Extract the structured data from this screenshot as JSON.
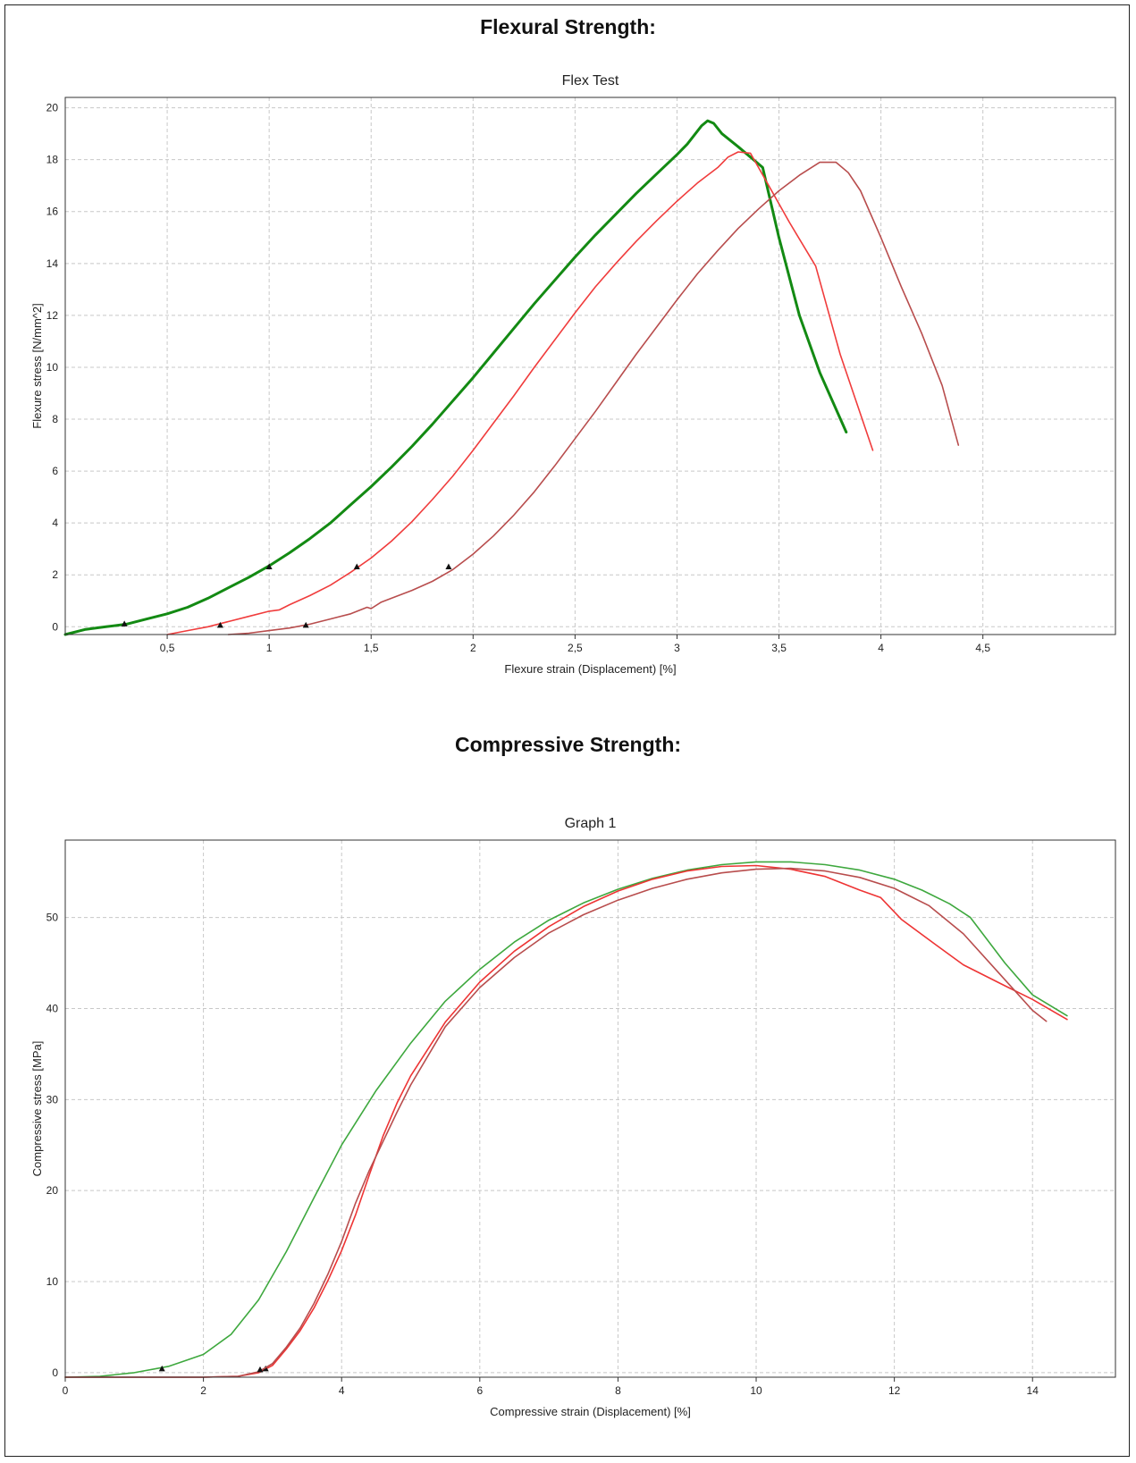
{
  "sections": [
    {
      "heading": "Flexural Strength:"
    },
    {
      "heading": "Compressive Strength:"
    }
  ],
  "chart_data": [
    {
      "type": "line",
      "title": "Flex Test",
      "xlabel": "Flexure strain (Displacement) [%]",
      "ylabel": "Flexure stress [N/mm^2]",
      "xlim": [
        0,
        5.15
      ],
      "ylim": [
        -0.3,
        20.4
      ],
      "xticks": [
        0.5,
        1,
        1.5,
        2,
        2.5,
        3,
        3.5,
        4,
        4.5
      ],
      "xtick_labels": [
        "0,5",
        "1",
        "1,5",
        "2",
        "2,5",
        "3",
        "3,5",
        "4",
        "4,5"
      ],
      "yticks": [
        0,
        2,
        4,
        6,
        8,
        10,
        12,
        14,
        16,
        18,
        20
      ],
      "ytick_labels": [
        "0",
        "2",
        "4",
        "6",
        "8",
        "10",
        "12",
        "14",
        "16",
        "18",
        "20"
      ],
      "grid": true,
      "series": [
        {
          "color": "#138a13",
          "width": 3,
          "points": [
            [
              0,
              -0.3
            ],
            [
              0.1,
              -0.1
            ],
            [
              0.2,
              0
            ],
            [
              0.3,
              0.1
            ],
            [
              0.4,
              0.3
            ],
            [
              0.5,
              0.5
            ],
            [
              0.6,
              0.75
            ],
            [
              0.7,
              1.1
            ],
            [
              0.8,
              1.5
            ],
            [
              0.9,
              1.9
            ],
            [
              1.0,
              2.35
            ],
            [
              1.1,
              2.85
            ],
            [
              1.2,
              3.4
            ],
            [
              1.3,
              4.0
            ],
            [
              1.4,
              4.7
            ],
            [
              1.5,
              5.4
            ],
            [
              1.6,
              6.15
            ],
            [
              1.7,
              6.95
            ],
            [
              1.8,
              7.8
            ],
            [
              1.9,
              8.7
            ],
            [
              2.0,
              9.6
            ],
            [
              2.1,
              10.55
            ],
            [
              2.2,
              11.5
            ],
            [
              2.3,
              12.45
            ],
            [
              2.4,
              13.35
            ],
            [
              2.5,
              14.25
            ],
            [
              2.6,
              15.1
            ],
            [
              2.7,
              15.9
            ],
            [
              2.8,
              16.7
            ],
            [
              2.9,
              17.45
            ],
            [
              3.0,
              18.2
            ],
            [
              3.05,
              18.6
            ],
            [
              3.12,
              19.3
            ],
            [
              3.15,
              19.5
            ],
            [
              3.18,
              19.4
            ],
            [
              3.22,
              19.0
            ],
            [
              3.3,
              18.5
            ],
            [
              3.42,
              17.7
            ],
            [
              3.5,
              15.0
            ],
            [
              3.6,
              12.0
            ],
            [
              3.7,
              9.8
            ],
            [
              3.83,
              7.5
            ]
          ],
          "markers": [
            [
              0.29,
              0.1
            ],
            [
              1.0,
              2.3
            ]
          ]
        },
        {
          "color": "#f03c3c",
          "width": 1.6,
          "points": [
            [
              0.5,
              -0.3
            ],
            [
              0.6,
              -0.15
            ],
            [
              0.7,
              0
            ],
            [
              0.8,
              0.2
            ],
            [
              0.9,
              0.4
            ],
            [
              1.0,
              0.6
            ],
            [
              1.05,
              0.65
            ],
            [
              1.1,
              0.85
            ],
            [
              1.2,
              1.2
            ],
            [
              1.3,
              1.6
            ],
            [
              1.4,
              2.1
            ],
            [
              1.5,
              2.65
            ],
            [
              1.6,
              3.3
            ],
            [
              1.7,
              4.05
            ],
            [
              1.8,
              4.9
            ],
            [
              1.9,
              5.8
            ],
            [
              2.0,
              6.8
            ],
            [
              2.1,
              7.85
            ],
            [
              2.2,
              8.9
            ],
            [
              2.3,
              10.0
            ],
            [
              2.4,
              11.05
            ],
            [
              2.5,
              12.1
            ],
            [
              2.6,
              13.1
            ],
            [
              2.7,
              14.0
            ],
            [
              2.8,
              14.85
            ],
            [
              2.9,
              15.65
            ],
            [
              3.0,
              16.4
            ],
            [
              3.1,
              17.1
            ],
            [
              3.2,
              17.7
            ],
            [
              3.25,
              18.1
            ],
            [
              3.3,
              18.3
            ],
            [
              3.36,
              18.25
            ],
            [
              3.45,
              17.0
            ],
            [
              3.55,
              15.6
            ],
            [
              3.68,
              13.9
            ],
            [
              3.8,
              10.5
            ],
            [
              3.96,
              6.8
            ]
          ],
          "markers": [
            [
              0.76,
              0.05
            ],
            [
              1.43,
              2.3
            ]
          ]
        },
        {
          "color": "#b84d4d",
          "width": 1.6,
          "points": [
            [
              0.8,
              -0.3
            ],
            [
              0.9,
              -0.25
            ],
            [
              1.0,
              -0.15
            ],
            [
              1.1,
              -0.05
            ],
            [
              1.2,
              0.1
            ],
            [
              1.3,
              0.3
            ],
            [
              1.4,
              0.5
            ],
            [
              1.48,
              0.75
            ],
            [
              1.5,
              0.7
            ],
            [
              1.55,
              0.95
            ],
            [
              1.6,
              1.1
            ],
            [
              1.7,
              1.4
            ],
            [
              1.8,
              1.75
            ],
            [
              1.9,
              2.2
            ],
            [
              2.0,
              2.8
            ],
            [
              2.1,
              3.5
            ],
            [
              2.2,
              4.3
            ],
            [
              2.3,
              5.2
            ],
            [
              2.4,
              6.2
            ],
            [
              2.5,
              7.25
            ],
            [
              2.6,
              8.3
            ],
            [
              2.7,
              9.4
            ],
            [
              2.8,
              10.5
            ],
            [
              2.9,
              11.55
            ],
            [
              3.0,
              12.6
            ],
            [
              3.1,
              13.6
            ],
            [
              3.2,
              14.5
            ],
            [
              3.3,
              15.35
            ],
            [
              3.4,
              16.1
            ],
            [
              3.5,
              16.8
            ],
            [
              3.6,
              17.4
            ],
            [
              3.7,
              17.9
            ],
            [
              3.78,
              17.9
            ],
            [
              3.84,
              17.5
            ],
            [
              3.9,
              16.8
            ],
            [
              4.0,
              15.0
            ],
            [
              4.1,
              13.1
            ],
            [
              4.2,
              11.3
            ],
            [
              4.3,
              9.3
            ],
            [
              4.38,
              7.0
            ]
          ],
          "markers": [
            [
              1.18,
              0.05
            ],
            [
              1.88,
              2.3
            ]
          ]
        }
      ]
    },
    {
      "type": "line",
      "title": "Graph 1",
      "xlabel": "Compressive strain (Displacement) [%]",
      "ylabel": "Compressive stress [MPa]",
      "xlim": [
        0,
        15.2
      ],
      "ylim": [
        -0.5,
        58.5
      ],
      "xticks": [
        0,
        2,
        4,
        6,
        8,
        10,
        12,
        14
      ],
      "xtick_labels": [
        "0",
        "2",
        "4",
        "6",
        "8",
        "10",
        "12",
        "14"
      ],
      "yticks": [
        0,
        10,
        20,
        30,
        40,
        50
      ],
      "ytick_labels": [
        "0",
        "10",
        "20",
        "30",
        "40",
        "50"
      ],
      "grid": true,
      "series": [
        {
          "color": "#3ea83e",
          "width": 1.6,
          "points": [
            [
              0,
              -0.5
            ],
            [
              0.5,
              -0.4
            ],
            [
              1.0,
              0
            ],
            [
              1.5,
              0.7
            ],
            [
              2.0,
              2.0
            ],
            [
              2.4,
              4.2
            ],
            [
              2.8,
              8.0
            ],
            [
              3.2,
              13.3
            ],
            [
              3.6,
              19.2
            ],
            [
              4.0,
              25.0
            ],
            [
              4.5,
              31.0
            ],
            [
              5.0,
              36.2
            ],
            [
              5.5,
              40.8
            ],
            [
              6.0,
              44.3
            ],
            [
              6.5,
              47.3
            ],
            [
              7.0,
              49.7
            ],
            [
              7.5,
              51.6
            ],
            [
              8.0,
              53.1
            ],
            [
              8.5,
              54.3
            ],
            [
              9.0,
              55.2
            ],
            [
              9.5,
              55.8
            ],
            [
              10.0,
              56.1
            ],
            [
              10.5,
              56.1
            ],
            [
              11.0,
              55.8
            ],
            [
              11.5,
              55.2
            ],
            [
              12.0,
              54.2
            ],
            [
              12.4,
              53.0
            ],
            [
              12.8,
              51.5
            ],
            [
              13.1,
              50.0
            ],
            [
              13.6,
              45.0
            ],
            [
              14.0,
              41.5
            ],
            [
              14.5,
              39.2
            ]
          ],
          "markers": [
            [
              1.4,
              0.4
            ]
          ]
        },
        {
          "color": "#ee3434",
          "width": 1.6,
          "points": [
            [
              0,
              -0.5
            ],
            [
              2.0,
              -0.5
            ],
            [
              2.5,
              -0.4
            ],
            [
              2.8,
              0
            ],
            [
              3.0,
              0.8
            ],
            [
              3.2,
              2.6
            ],
            [
              3.4,
              4.6
            ],
            [
              3.6,
              7.1
            ],
            [
              3.8,
              10.1
            ],
            [
              4.0,
              13.4
            ],
            [
              4.2,
              17.3
            ],
            [
              4.4,
              21.7
            ],
            [
              4.6,
              26.0
            ],
            [
              4.8,
              29.6
            ],
            [
              5.0,
              32.6
            ],
            [
              5.5,
              38.5
            ],
            [
              6.0,
              42.9
            ],
            [
              6.5,
              46.3
            ],
            [
              7.0,
              49.0
            ],
            [
              7.5,
              51.2
            ],
            [
              8.0,
              52.9
            ],
            [
              8.5,
              54.2
            ],
            [
              9.0,
              55.1
            ],
            [
              9.5,
              55.6
            ],
            [
              10.0,
              55.7
            ],
            [
              10.5,
              55.3
            ],
            [
              11.0,
              54.5
            ],
            [
              11.5,
              53.0
            ],
            [
              11.8,
              52.2
            ],
            [
              12.1,
              49.8
            ],
            [
              12.6,
              47.0
            ],
            [
              13.0,
              44.8
            ],
            [
              13.6,
              42.5
            ],
            [
              14.0,
              41.0
            ],
            [
              14.5,
              38.8
            ]
          ],
          "markers": [
            [
              2.9,
              0.4
            ]
          ]
        },
        {
          "color": "#b84d4d",
          "width": 1.6,
          "points": [
            [
              0,
              -0.5
            ],
            [
              2.0,
              -0.5
            ],
            [
              2.5,
              -0.4
            ],
            [
              2.8,
              0.1
            ],
            [
              3.0,
              1.0
            ],
            [
              3.2,
              2.8
            ],
            [
              3.4,
              4.9
            ],
            [
              3.6,
              7.6
            ],
            [
              3.8,
              10.8
            ],
            [
              4.0,
              14.4
            ],
            [
              4.2,
              18.6
            ],
            [
              4.4,
              22.2
            ],
            [
              4.6,
              25.4
            ],
            [
              4.8,
              28.6
            ],
            [
              5.0,
              31.6
            ],
            [
              5.5,
              38.0
            ],
            [
              6.0,
              42.3
            ],
            [
              6.5,
              45.6
            ],
            [
              7.0,
              48.3
            ],
            [
              7.5,
              50.3
            ],
            [
              8.0,
              51.9
            ],
            [
              8.5,
              53.2
            ],
            [
              9.0,
              54.2
            ],
            [
              9.5,
              54.9
            ],
            [
              10.0,
              55.3
            ],
            [
              10.5,
              55.4
            ],
            [
              11.0,
              55.1
            ],
            [
              11.5,
              54.4
            ],
            [
              12.0,
              53.2
            ],
            [
              12.5,
              51.3
            ],
            [
              13.0,
              48.2
            ],
            [
              13.5,
              44.0
            ],
            [
              14.0,
              39.8
            ],
            [
              14.2,
              38.6
            ]
          ],
          "markers": [
            [
              2.82,
              0.3
            ]
          ]
        }
      ]
    }
  ]
}
